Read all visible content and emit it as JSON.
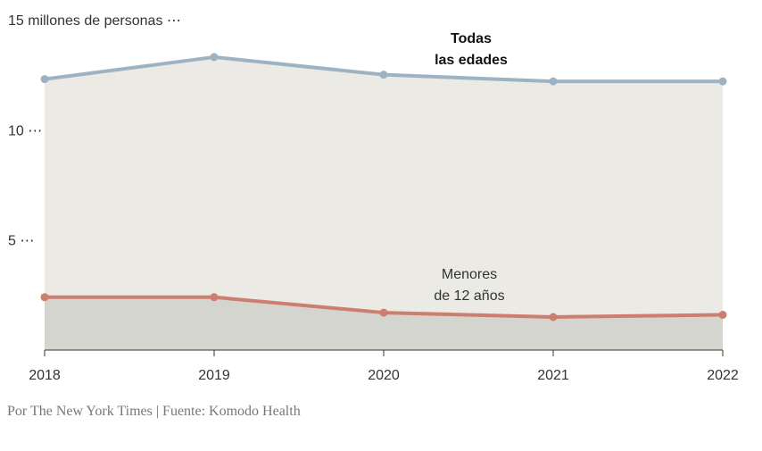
{
  "chart_data": {
    "type": "area",
    "x": [
      "2018",
      "2019",
      "2020",
      "2021",
      "2022"
    ],
    "series": [
      {
        "name": "Todas las edades",
        "label_lines": [
          "Todas",
          "las edades"
        ],
        "values": [
          12.3,
          13.3,
          12.5,
          12.2,
          12.2
        ],
        "color": "#9db3c4",
        "fill": "#ebeae4"
      },
      {
        "name": "Menores de 12 años",
        "label_lines": [
          "Menores",
          "de 12 años"
        ],
        "values": [
          2.4,
          2.4,
          1.7,
          1.5,
          1.6
        ],
        "color": "#cc7f6f",
        "fill": "#d5d5d0"
      }
    ],
    "y_ticks": [
      {
        "value": 15,
        "label": "15 millones de personas ⋯"
      },
      {
        "value": 10,
        "label": "10 ⋯"
      },
      {
        "value": 5,
        "label": "5 ⋯"
      }
    ],
    "ylim": [
      0,
      15
    ],
    "grid": false
  },
  "credit": "Por The New York Times | Fuente: Komodo Health"
}
